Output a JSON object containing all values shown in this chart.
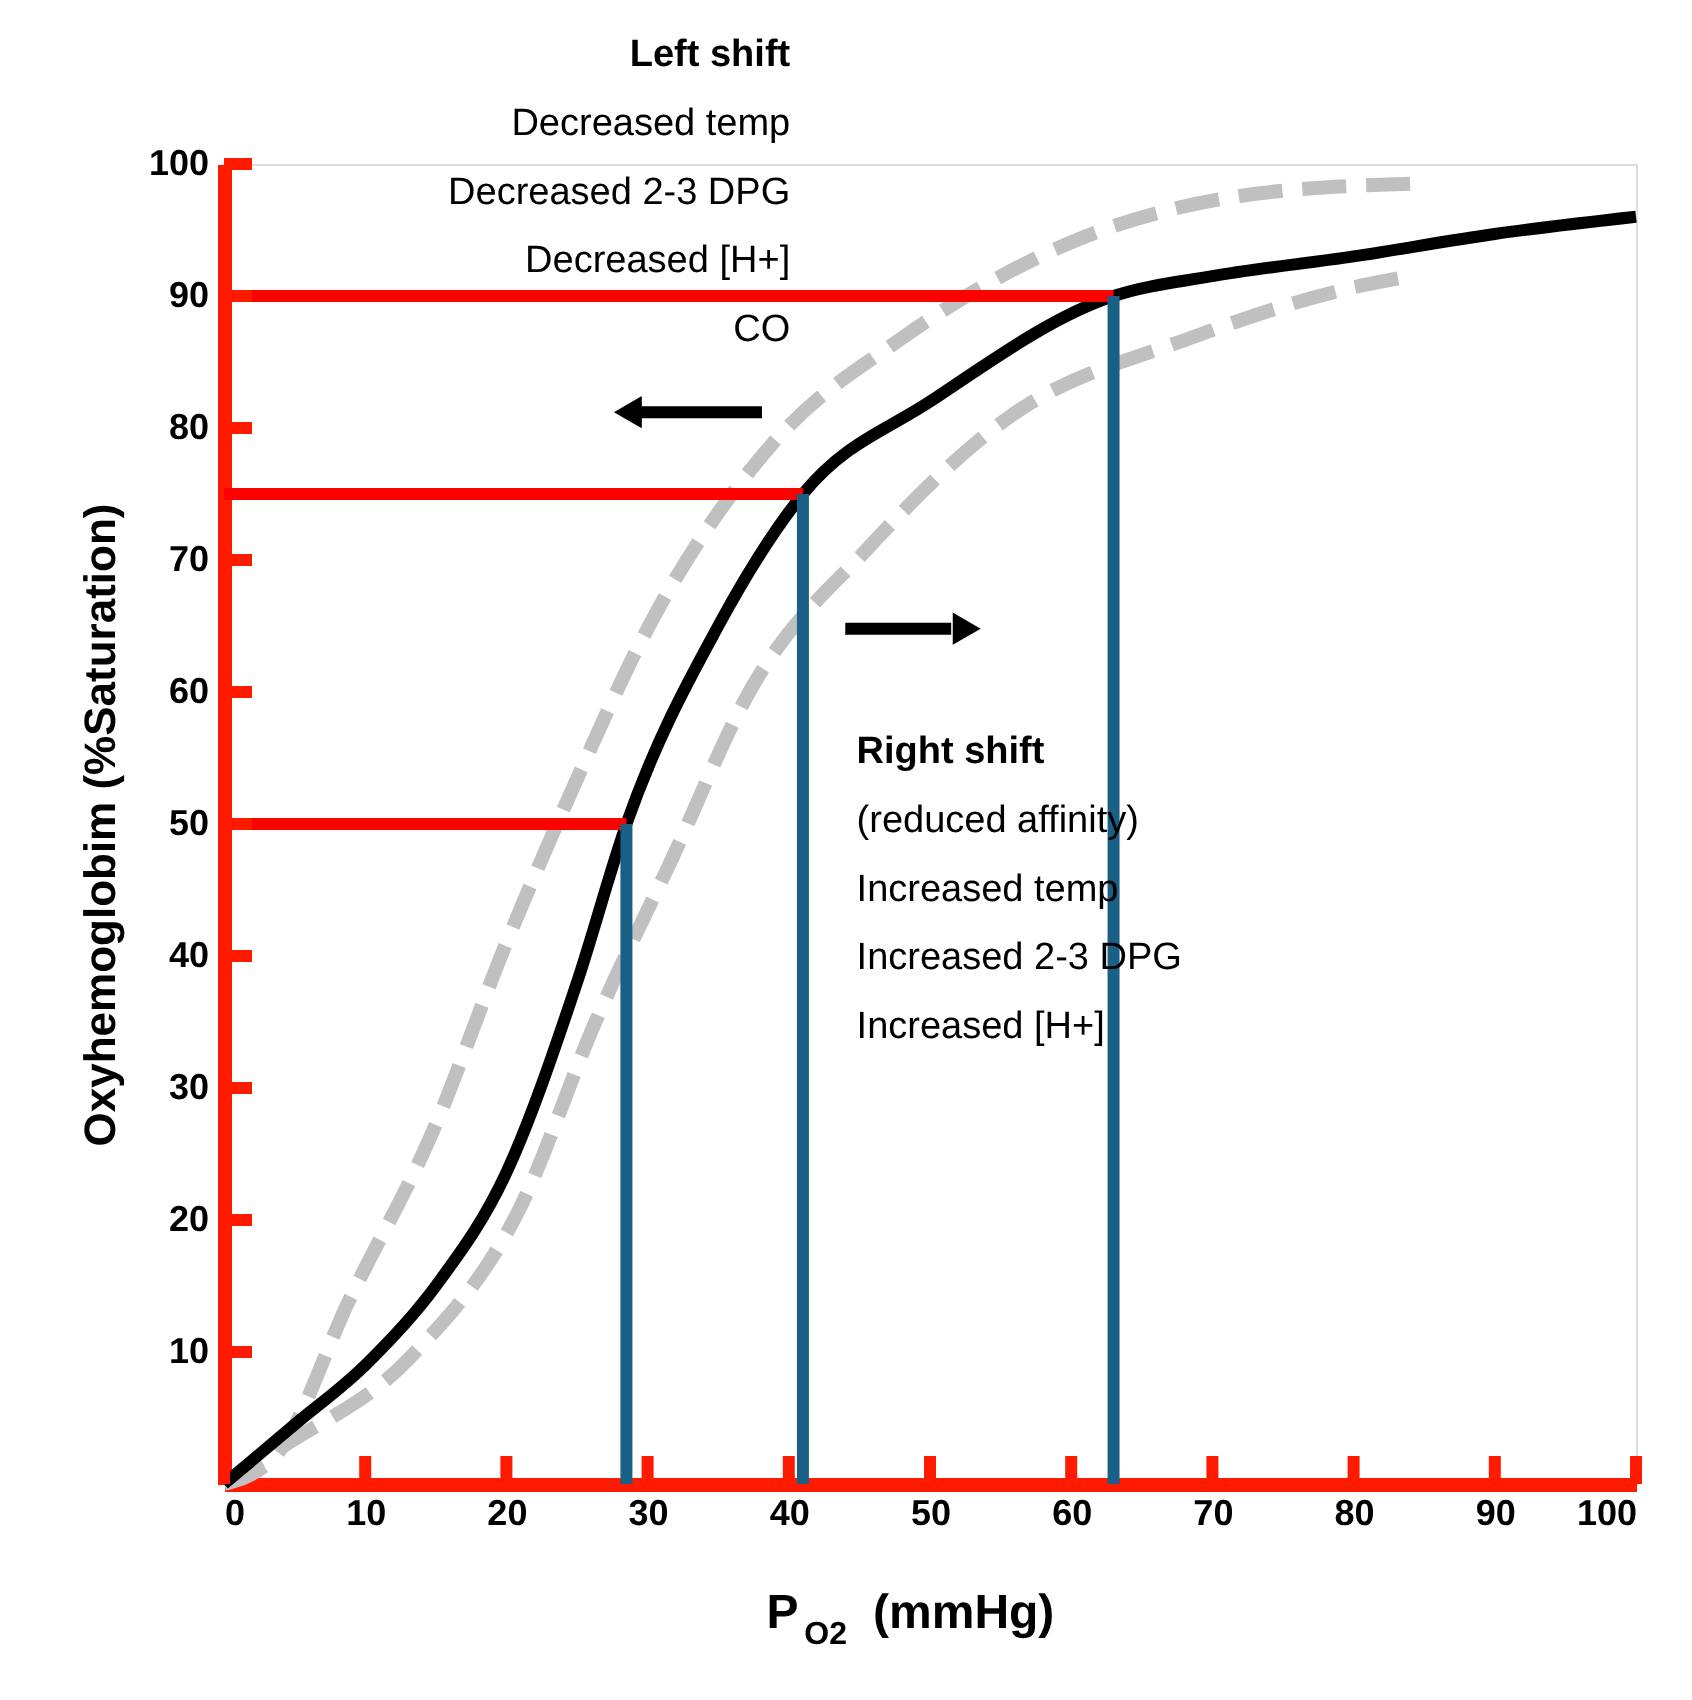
{
  "chart_data": {
    "type": "line",
    "xlabel": "P$_{O2}$  (mmHg)",
    "ylabel": "Oxyhemoglobim  (%Saturation)",
    "xlim": [
      0,
      100
    ],
    "ylim": [
      0,
      100
    ],
    "xticks": [
      0,
      10,
      20,
      30,
      40,
      50,
      60,
      70,
      80,
      90,
      100
    ],
    "yticks": [
      10,
      20,
      30,
      40,
      50,
      60,
      70,
      80,
      90,
      100
    ],
    "grid": false,
    "annotations": [
      "Left shift\nDecreased temp\nDecreased 2-3 DPG\nDecreased [H+]\nCO",
      "Right shift\n(reduced affinity)\nIncreased temp\nIncreased 2-3 DPG\nIncreased [H+]"
    ],
    "series": [
      {
        "color": "#c0c0c0",
        "line_style": "dashed",
        "x": [
          0,
          3.7,
          8.9,
          14.7,
          20,
          24,
          30.6,
          39,
          48,
          60.3,
          73.5,
          84
        ],
        "values": [
          0,
          2.2,
          14,
          26.5,
          41,
          51,
          66,
          79,
          86.8,
          94.2,
          97.8,
          98.5
        ]
      },
      {
        "color": "#c0c0c0",
        "line_style": "dashed",
        "x": [
          0,
          4.1,
          13.2,
          21,
          26.3,
          31.7,
          37.2,
          45.7,
          55.7,
          68.4,
          80.6,
          84
        ],
        "values": [
          0,
          2.8,
          9.6,
          21,
          35,
          47.3,
          60,
          71,
          80.9,
          86.8,
          90.8,
          91.5
        ]
      },
      {
        "color": "#000000",
        "line_style": "solid",
        "x": [
          0,
          5,
          10,
          15,
          20,
          25,
          28.5,
          35,
          41,
          50,
          63,
          70,
          80,
          90,
          100
        ],
        "values": [
          0,
          4.5,
          9,
          15,
          23.6,
          38,
          50,
          65,
          75,
          82,
          90,
          91.5,
          93,
          94.7,
          96
        ]
      },
      {
        "color": "#ff0000",
        "line_style": "solid",
        "x": [
          0,
          63
        ],
        "values": [
          90,
          90
        ]
      },
      {
        "color": "#ff0000",
        "line_style": "solid",
        "x": [
          0,
          41
        ],
        "values": [
          75,
          75
        ]
      },
      {
        "color": "#ff0000",
        "line_style": "solid",
        "x": [
          0,
          28.5
        ],
        "values": [
          50,
          50
        ]
      },
      {
        "color": "#1a5f85",
        "line_style": "solid",
        "x": [
          28.5,
          28.5
        ],
        "values": [
          0,
          50
        ]
      },
      {
        "color": "#1a5f85",
        "line_style": "solid",
        "x": [
          41,
          41
        ],
        "values": [
          0,
          75
        ]
      },
      {
        "color": "#1a5f85",
        "line_style": "solid",
        "x": [
          63,
          63
        ],
        "values": [
          0,
          90
        ]
      }
    ]
  }
}
